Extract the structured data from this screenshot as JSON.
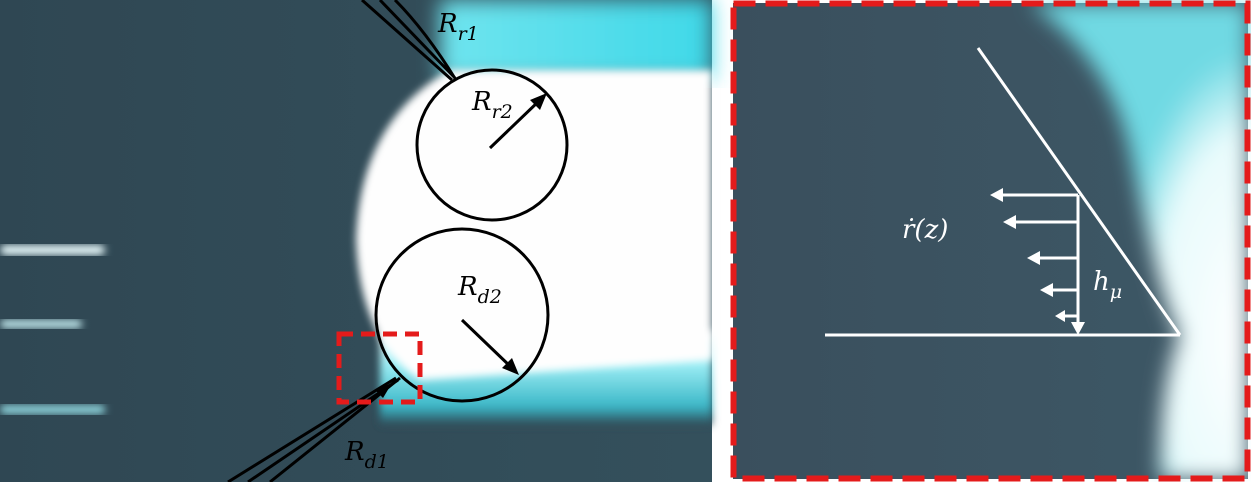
{
  "left_panel": {
    "labels": [
      {
        "main": "R",
        "sub": "r1"
      },
      {
        "main": "R",
        "sub": "r2"
      },
      {
        "main": "R",
        "sub": "d2"
      },
      {
        "main": "R",
        "sub": "d1"
      }
    ]
  },
  "right_panel": {
    "labels": [
      {
        "main": "ṙ(z)"
      },
      {
        "main": "h",
        "sub": "μ"
      }
    ]
  }
}
